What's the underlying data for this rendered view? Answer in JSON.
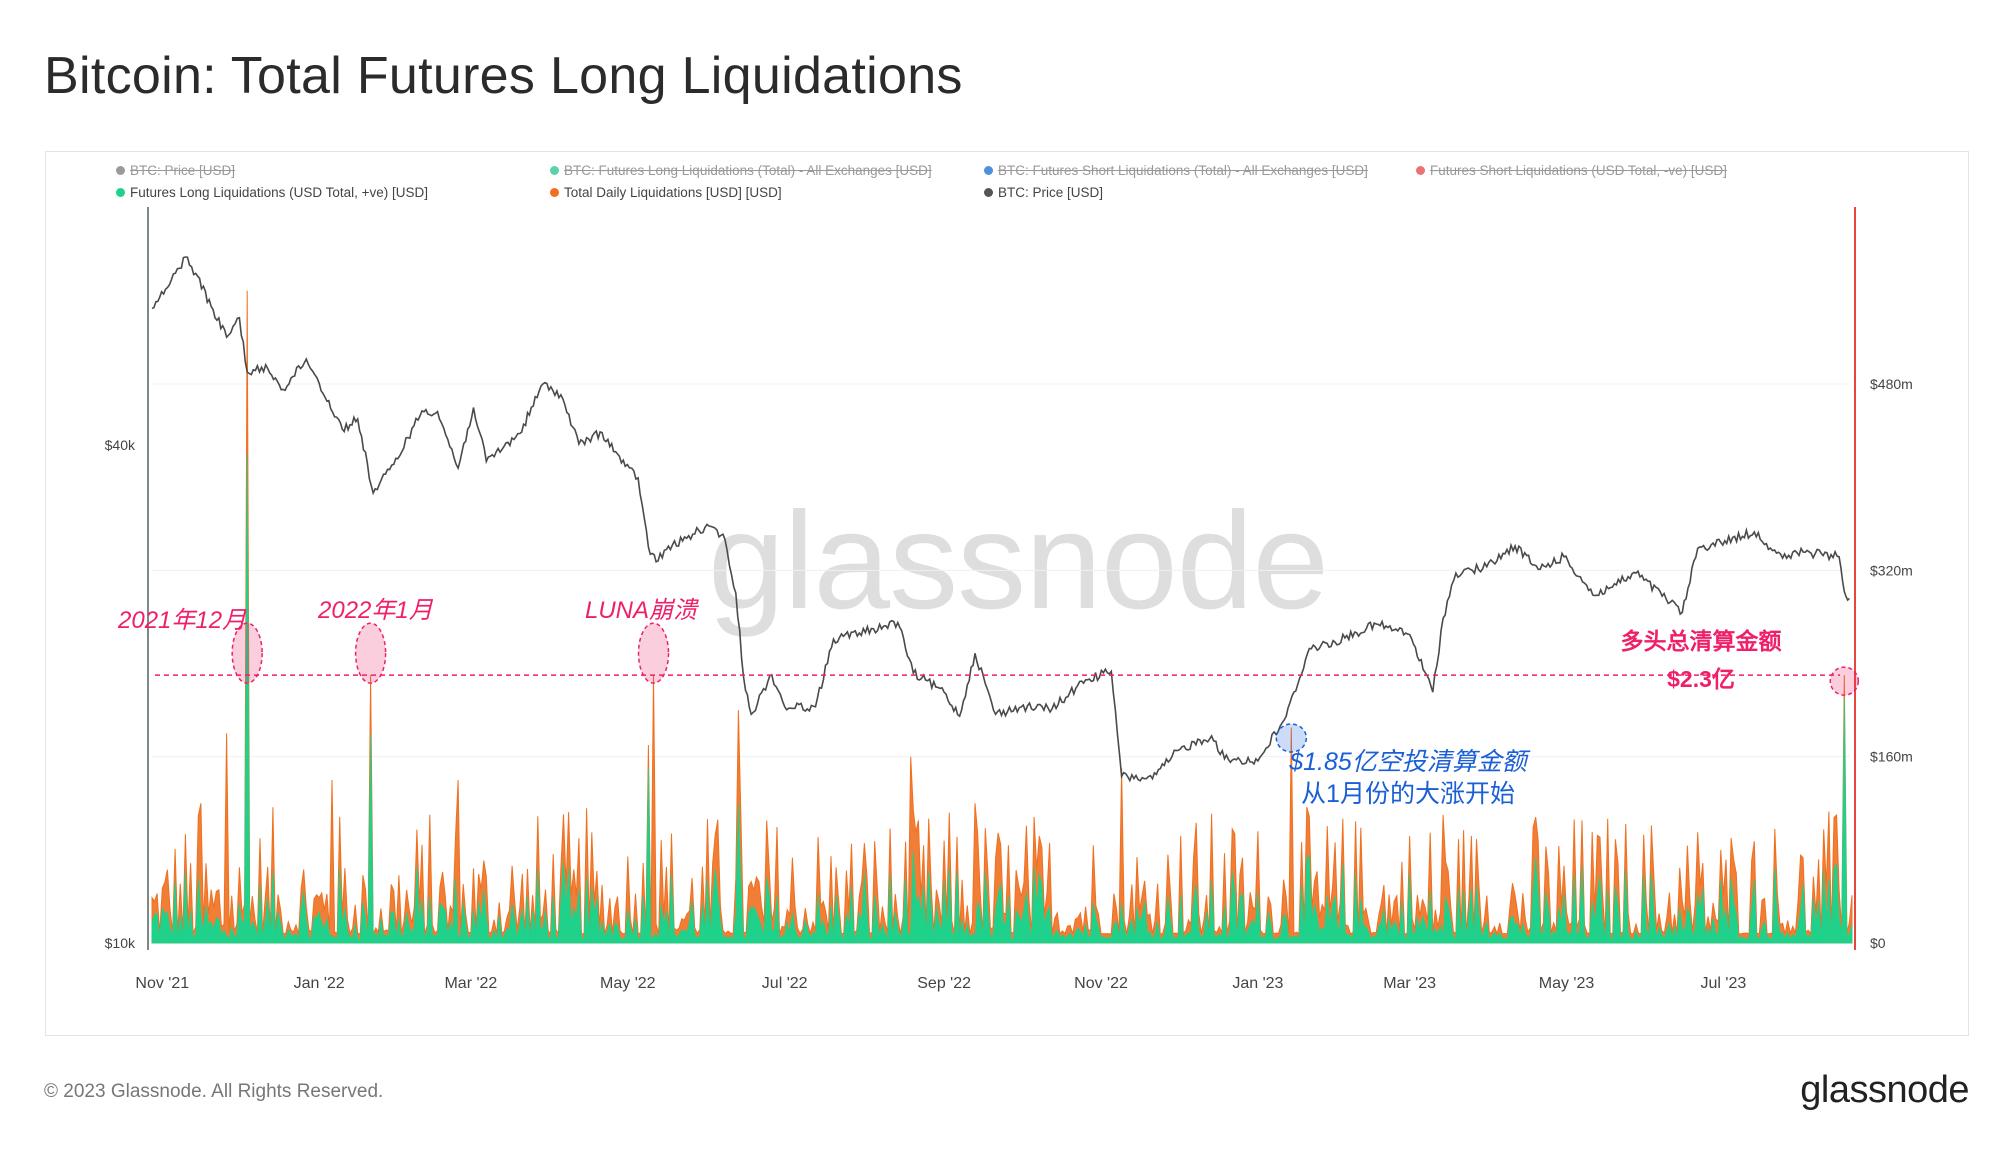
{
  "title": "Bitcoin: Total Futures Long Liquidations",
  "legend": [
    {
      "label": "BTC: Price [USD]",
      "color": "#8a8a8a",
      "disabled": true
    },
    {
      "label": "BTC: Futures Long Liquidations (Total) - All Exchanges [USD]",
      "color": "#3ec99a",
      "disabled": true
    },
    {
      "label": "BTC: Futures Short Liquidations (Total) - All Exchanges [USD]",
      "color": "#2f7fd6",
      "disabled": true
    },
    {
      "label": "Futures Short Liquidations (USD Total, -ve) [USD]",
      "color": "#e85a5a",
      "disabled": true
    },
    {
      "label": "Futures Long Liquidations (USD Total, +ve) [USD]",
      "color": "#1fd18a",
      "disabled": false
    },
    {
      "label": "Total Daily Liquidations [USD] [USD]",
      "color": "#f07020",
      "disabled": false
    },
    {
      "label": "BTC: Price [USD]",
      "color": "#555555",
      "disabled": false
    }
  ],
  "watermark": "glassnode",
  "annotations": {
    "dec2021": "2021年12月",
    "jan2022": "2022年1月",
    "luna": "LUNA崩溃",
    "long_total_line1": "多头总清算金额",
    "long_total_line2": "$2.3亿",
    "short_line1": "$1.85亿空投清算金额",
    "short_line2": "从1月份的大涨开始"
  },
  "footer": "© 2023 Glassnode. All Rights Reserved.",
  "brand": "glassnode",
  "colors": {
    "price": "#4a4a4a",
    "long": "#1fd18a",
    "total": "#f07020",
    "right_axis": "#e8453c",
    "annotation_pink": "#ef1f6a",
    "annotation_blue": "#1a5fd6"
  },
  "chart_data": {
    "type": "area",
    "x_range": [
      "2021-10-28",
      "2023-08-20"
    ],
    "x_ticks": [
      {
        "date": "2021-11-01",
        "label": "Nov '21"
      },
      {
        "date": "2022-01-01",
        "label": "Jan '22"
      },
      {
        "date": "2022-03-01",
        "label": "Mar '22"
      },
      {
        "date": "2022-05-01",
        "label": "May '22"
      },
      {
        "date": "2022-07-01",
        "label": "Jul '22"
      },
      {
        "date": "2022-09-01",
        "label": "Sep '22"
      },
      {
        "date": "2022-11-01",
        "label": "Nov '22"
      },
      {
        "date": "2023-01-01",
        "label": "Jan '23"
      },
      {
        "date": "2023-03-01",
        "label": "Mar '23"
      },
      {
        "date": "2023-05-01",
        "label": "May '23"
      },
      {
        "date": "2023-07-01",
        "label": "Jul '23"
      }
    ],
    "y_left": {
      "scale": "log",
      "range": [
        10000,
        72000
      ],
      "ticks": [
        {
          "value": 10000,
          "label": "$10k"
        },
        {
          "value": 40000,
          "label": "$40k"
        }
      ]
    },
    "y_right": {
      "scale": "linear",
      "range": [
        0,
        640000000
      ],
      "ticks": [
        {
          "value": 0,
          "label": "$0"
        },
        {
          "value": 160000000,
          "label": "$160m"
        },
        {
          "value": 320000000,
          "label": "$320m"
        },
        {
          "value": 480000000,
          "label": "$480m"
        }
      ]
    },
    "reference_line_value": 230000000,
    "series": [
      {
        "name": "BTC: Price [USD]",
        "axis": "left",
        "points": [
          [
            "2021-10-28",
            58500
          ],
          [
            "2021-11-03",
            62000
          ],
          [
            "2021-11-10",
            67500
          ],
          [
            "2021-11-14",
            64500
          ],
          [
            "2021-11-20",
            58800
          ],
          [
            "2021-11-26",
            54000
          ],
          [
            "2021-12-01",
            57000
          ],
          [
            "2021-12-04",
            49000
          ],
          [
            "2021-12-12",
            49500
          ],
          [
            "2021-12-18",
            46700
          ],
          [
            "2021-12-27",
            50800
          ],
          [
            "2022-01-01",
            47500
          ],
          [
            "2022-01-10",
            41800
          ],
          [
            "2022-01-16",
            43000
          ],
          [
            "2022-01-22",
            35000
          ],
          [
            "2022-01-30",
            37900
          ],
          [
            "2022-02-10",
            44000
          ],
          [
            "2022-02-16",
            43900
          ],
          [
            "2022-02-24",
            37500
          ],
          [
            "2022-03-02",
            44400
          ],
          [
            "2022-03-07",
            38200
          ],
          [
            "2022-03-20",
            41300
          ],
          [
            "2022-03-29",
            47400
          ],
          [
            "2022-04-05",
            46000
          ],
          [
            "2022-04-12",
            40100
          ],
          [
            "2022-04-21",
            41400
          ],
          [
            "2022-04-30",
            37700
          ],
          [
            "2022-05-05",
            36500
          ],
          [
            "2022-05-09",
            30100
          ],
          [
            "2022-05-12",
            28900
          ],
          [
            "2022-05-16",
            29900
          ],
          [
            "2022-05-31",
            31800
          ],
          [
            "2022-06-07",
            31200
          ],
          [
            "2022-06-12",
            26500
          ],
          [
            "2022-06-15",
            21000
          ],
          [
            "2022-06-18",
            18900
          ],
          [
            "2022-06-26",
            21100
          ],
          [
            "2022-07-01",
            19300
          ],
          [
            "2022-07-13",
            19300
          ],
          [
            "2022-07-20",
            23300
          ],
          [
            "2022-07-30",
            23700
          ],
          [
            "2022-08-14",
            24400
          ],
          [
            "2022-08-20",
            21200
          ],
          [
            "2022-09-01",
            20100
          ],
          [
            "2022-09-07",
            18800
          ],
          [
            "2022-09-13",
            22400
          ],
          [
            "2022-09-21",
            18900
          ],
          [
            "2022-10-01",
            19300
          ],
          [
            "2022-10-13",
            19200
          ],
          [
            "2022-10-26",
            20800
          ],
          [
            "2022-11-05",
            21300
          ],
          [
            "2022-11-09",
            15900
          ],
          [
            "2022-11-21",
            15800
          ],
          [
            "2022-12-01",
            17100
          ],
          [
            "2022-12-14",
            17800
          ],
          [
            "2022-12-19",
            16700
          ],
          [
            "2023-01-01",
            16600
          ],
          [
            "2023-01-12",
            18800
          ],
          [
            "2023-01-21",
            22700
          ],
          [
            "2023-01-31",
            23100
          ],
          [
            "2023-02-16",
            24300
          ],
          [
            "2023-03-01",
            23600
          ],
          [
            "2023-03-10",
            20100
          ],
          [
            "2023-03-14",
            24700
          ],
          [
            "2023-03-19",
            28000
          ],
          [
            "2023-03-31",
            28500
          ],
          [
            "2023-04-11",
            30200
          ],
          [
            "2023-04-20",
            28300
          ],
          [
            "2023-04-30",
            29300
          ],
          [
            "2023-05-12",
            26300
          ],
          [
            "2023-05-28",
            28000
          ],
          [
            "2023-06-15",
            25100
          ],
          [
            "2023-06-21",
            30000
          ],
          [
            "2023-06-30",
            30500
          ],
          [
            "2023-07-13",
            31400
          ],
          [
            "2023-07-24",
            29200
          ],
          [
            "2023-08-01",
            29700
          ],
          [
            "2023-08-15",
            29300
          ],
          [
            "2023-08-17",
            26600
          ],
          [
            "2023-08-19",
            26100
          ]
        ]
      },
      {
        "name": "Total Daily Liquidations [USD] [USD]",
        "axis": "right",
        "spikes": [
          [
            "2021-11-16",
            120000000
          ],
          [
            "2021-11-26",
            180000000
          ],
          [
            "2021-12-04",
            560000000
          ],
          [
            "2022-01-06",
            140000000
          ],
          [
            "2022-01-21",
            230000000
          ],
          [
            "2022-02-24",
            140000000
          ],
          [
            "2022-05-09",
            170000000
          ],
          [
            "2022-05-11",
            230000000
          ],
          [
            "2022-06-13",
            200000000
          ],
          [
            "2022-08-19",
            160000000
          ],
          [
            "2022-09-13",
            120000000
          ],
          [
            "2022-11-09",
            150000000
          ],
          [
            "2023-01-14",
            185000000
          ],
          [
            "2023-03-14",
            110000000
          ],
          [
            "2023-08-17",
            230000000
          ]
        ]
      },
      {
        "name": "Futures Long Liquidations (USD Total, +ve) [USD]",
        "axis": "right",
        "spikes": [
          [
            "2021-12-04",
            420000000
          ],
          [
            "2022-01-21",
            180000000
          ],
          [
            "2022-05-09",
            150000000
          ],
          [
            "2022-06-13",
            120000000
          ],
          [
            "2023-08-17",
            210000000
          ]
        ]
      }
    ]
  }
}
